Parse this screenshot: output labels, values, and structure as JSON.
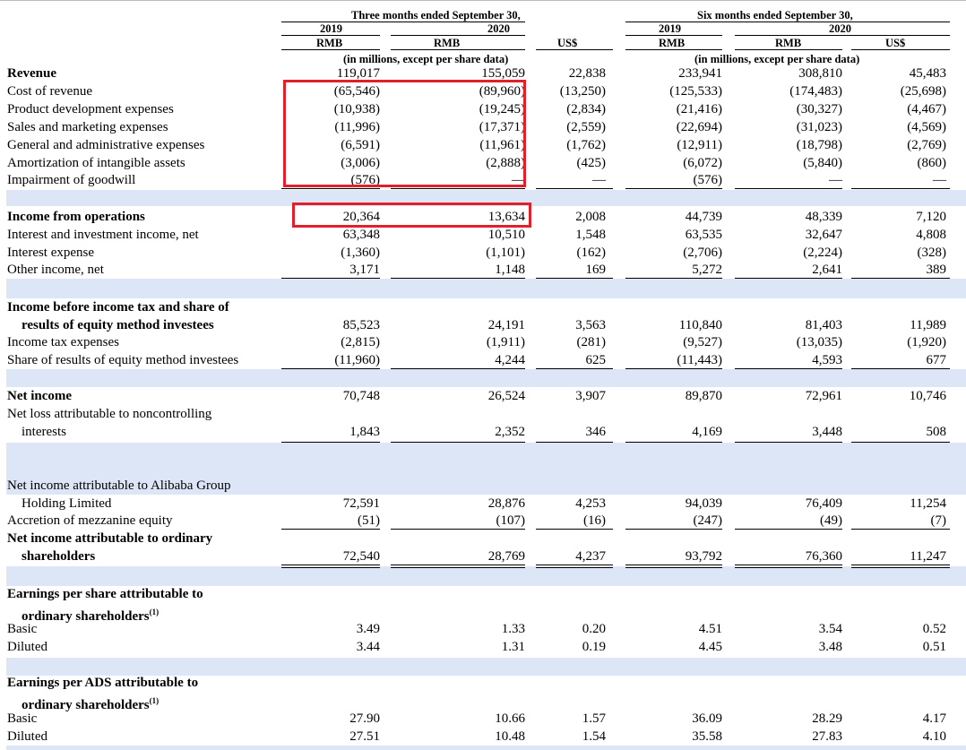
{
  "header": {
    "three_months": "Three months ended September 30,",
    "six_months": "Six months ended September 30,",
    "year_2019": "2019",
    "year_2020": "2020",
    "rmb": "RMB",
    "usd": "US$",
    "units_note": "(in millions, except per share data)"
  },
  "rows": [
    {
      "label": "Revenue",
      "bold": true,
      "values": [
        "119,017",
        "155,059",
        "22,838",
        "233,941",
        "308,810",
        "45,483"
      ]
    },
    {
      "label": "Cost of revenue",
      "values": [
        "(65,546)",
        "(89,960)",
        "(13,250)",
        "(125,533)",
        "(174,483)",
        "(25,698)"
      ]
    },
    {
      "label": "Product development expenses",
      "values": [
        "(10,938)",
        "(19,245)",
        "(2,834)",
        "(21,416)",
        "(30,327)",
        "(4,467)"
      ]
    },
    {
      "label": "Sales and marketing expenses",
      "values": [
        "(11,996)",
        "(17,371)",
        "(2,559)",
        "(22,694)",
        "(31,023)",
        "(4,569)"
      ]
    },
    {
      "label": "General and administrative expenses",
      "values": [
        "(6,591)",
        "(11,961)",
        "(1,762)",
        "(12,911)",
        "(18,798)",
        "(2,769)"
      ]
    },
    {
      "label": "Amortization of intangible assets",
      "values": [
        "(3,006)",
        "(2,888)",
        "(425)",
        "(6,072)",
        "(5,840)",
        "(860)"
      ]
    },
    {
      "label": "Impairment of goodwill",
      "values": [
        "(576)",
        "—",
        "—",
        "(576)",
        "—",
        "—"
      ]
    },
    {
      "label": "Income from operations",
      "bold": true,
      "values": [
        "20,364",
        "13,634",
        "2,008",
        "44,739",
        "48,339",
        "7,120"
      ]
    },
    {
      "label": "Interest and investment income, net",
      "values": [
        "63,348",
        "10,510",
        "1,548",
        "63,535",
        "32,647",
        "4,808"
      ]
    },
    {
      "label": "Interest expense",
      "values": [
        "(1,360)",
        "(1,101)",
        "(162)",
        "(2,706)",
        "(2,224)",
        "(328)"
      ]
    },
    {
      "label": "Other income, net",
      "values": [
        "3,171",
        "1,148",
        "169",
        "5,272",
        "2,641",
        "389"
      ]
    },
    {
      "label": "Income before income tax and share of",
      "label2": "results of equity method investees",
      "bold": true,
      "values": [
        "85,523",
        "24,191",
        "3,563",
        "110,840",
        "81,403",
        "11,989"
      ]
    },
    {
      "label": "Income tax expenses",
      "values": [
        "(2,815)",
        "(1,911)",
        "(281)",
        "(9,527)",
        "(13,035)",
        "(1,920)"
      ]
    },
    {
      "label": "Share of results of equity method investees",
      "values": [
        "(11,960)",
        "4,244",
        "625",
        "(11,443)",
        "4,593",
        "677"
      ]
    },
    {
      "label": "Net income",
      "bold": true,
      "values": [
        "70,748",
        "26,524",
        "3,907",
        "89,870",
        "72,961",
        "10,746"
      ]
    },
    {
      "label": "Net loss attributable to noncontrolling",
      "label2": "interests",
      "values": [
        "1,843",
        "2,352",
        "346",
        "4,169",
        "3,448",
        "508"
      ]
    },
    {
      "label": "Net income attributable to Alibaba Group",
      "label2": "Holding Limited",
      "values": [
        "72,591",
        "28,876",
        "4,253",
        "94,039",
        "76,409",
        "11,254"
      ]
    },
    {
      "label": "Accretion of mezzanine equity",
      "values": [
        "(51)",
        "(107)",
        "(16)",
        "(247)",
        "(49)",
        "(7)"
      ]
    },
    {
      "label": "Net income attributable to ordinary",
      "label2": "shareholders",
      "bold": true,
      "values": [
        "72,540",
        "28,769",
        "4,237",
        "93,792",
        "76,360",
        "11,247"
      ]
    },
    {
      "label": "Earnings per share attributable to",
      "label2": "ordinary shareholders",
      "sup": "(1)",
      "bold": true,
      "values": []
    },
    {
      "label": "Basic",
      "values": [
        "3.49",
        "1.33",
        "0.20",
        "4.51",
        "3.54",
        "0.52"
      ]
    },
    {
      "label": "Diluted",
      "values": [
        "3.44",
        "1.31",
        "0.19",
        "4.45",
        "3.48",
        "0.51"
      ]
    },
    {
      "label": "Earnings per ADS attributable to",
      "label2": "ordinary shareholders",
      "sup": "(1)",
      "bold": true,
      "values": []
    },
    {
      "label": "Basic",
      "values": [
        "27.90",
        "10.66",
        "1.57",
        "36.09",
        "28.29",
        "4.17"
      ]
    },
    {
      "label": "Diluted",
      "values": [
        "27.51",
        "10.48",
        "1.54",
        "35.58",
        "27.83",
        "4.10"
      ]
    }
  ],
  "highlight_color": "#e0202a"
}
